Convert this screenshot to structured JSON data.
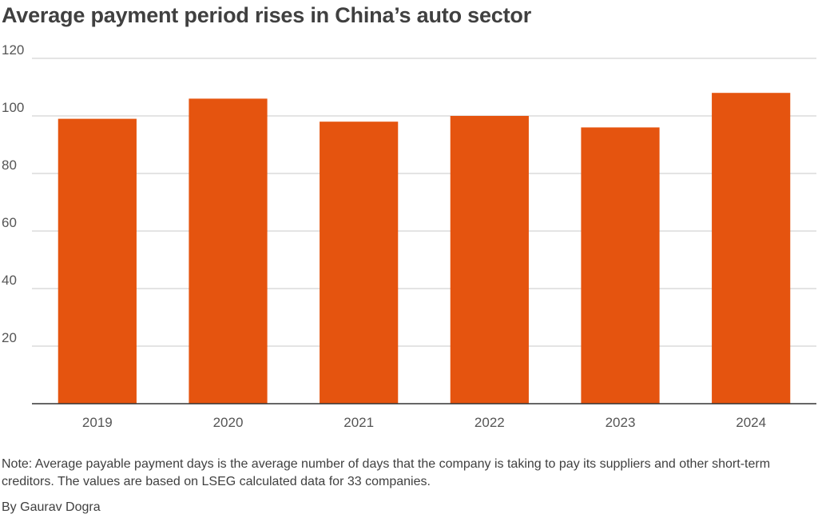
{
  "chart_data": {
    "type": "bar",
    "title": "Average payment period rises in China’s auto sector",
    "categories": [
      "2019",
      "2020",
      "2021",
      "2022",
      "2023",
      "2024"
    ],
    "values": [
      99,
      106,
      98,
      100,
      96,
      108
    ],
    "ylim": [
      0,
      120
    ],
    "yticks": [
      20,
      40,
      60,
      80,
      100,
      120
    ],
    "xlabel": "",
    "ylabel": "",
    "grid": true,
    "legend": "none",
    "bar_color": "#e5540f",
    "grid_color": "#c8c8c8",
    "axis_color": "#333333"
  },
  "note": "Note: Average payable payment days is the average number of days that the company is taking to pay its suppliers and other short-term creditors. The values are based on LSEG calculated data for 33 companies.",
  "byline": "By Gaurav Dogra"
}
